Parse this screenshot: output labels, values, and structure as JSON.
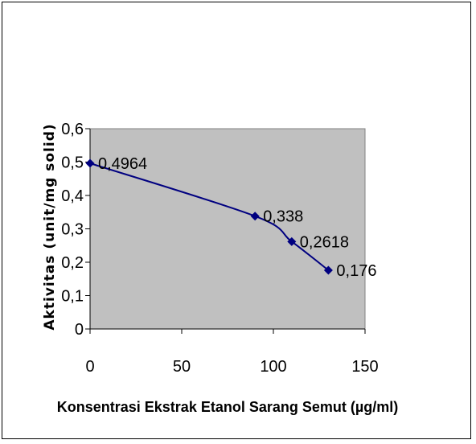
{
  "chart_data": {
    "type": "line",
    "x": [
      0,
      90,
      110,
      130
    ],
    "y": [
      0.4964,
      0.338,
      0.2618,
      0.176
    ],
    "data_labels": [
      "0,4964",
      "0,338",
      "0,2618",
      "0,176"
    ],
    "xlabel": "Konsentrasi Ekstrak Etanol Sarang Semut (µg/ml)",
    "ylabel": "Aktivitas (unit/mg solid)",
    "xlim": [
      0,
      150
    ],
    "ylim": [
      0,
      0.6
    ],
    "x_ticks": [
      "0",
      "50",
      "100",
      "150"
    ],
    "y_ticks": [
      "0",
      "0,1",
      "0,2",
      "0,3",
      "0,4",
      "0,5",
      "0,6"
    ],
    "legend": "none",
    "grid": false,
    "colors": {
      "plot_area": "#c0c0c0",
      "series": "#000080"
    }
  }
}
